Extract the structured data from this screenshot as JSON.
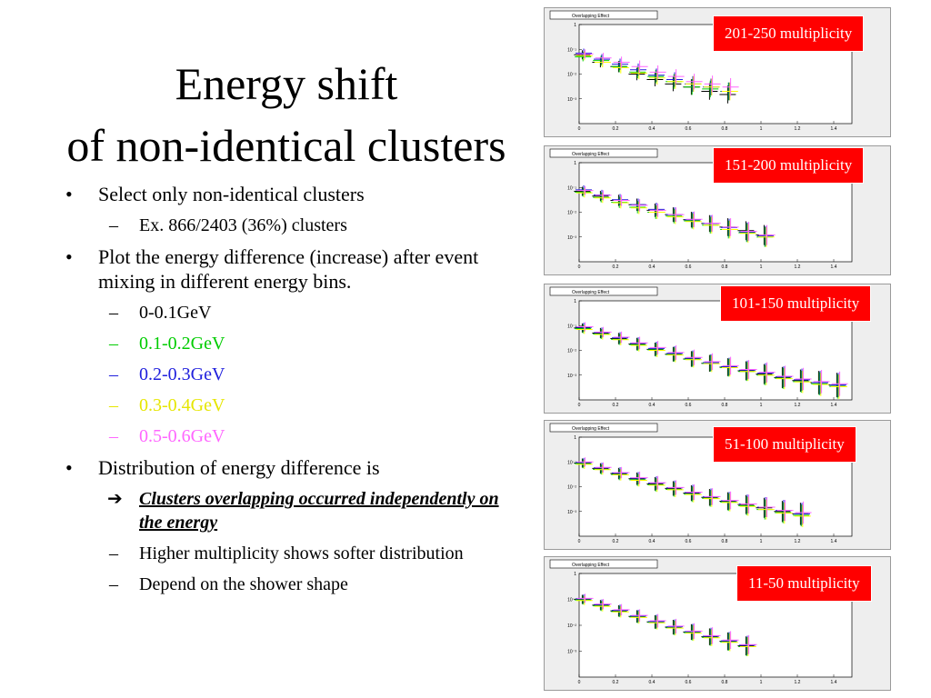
{
  "title": {
    "line1": "Energy shift",
    "line2": "of non-identical clusters"
  },
  "bullets": {
    "b1": "Select only non-identical clusters",
    "b1_sub": "Ex. 866/2403 (36%) clusters",
    "b2": "Plot the energy difference (increase) after event mixing in different energy bins.",
    "b2_sub": [
      {
        "text": "0-0.1GeV",
        "color": "#000000"
      },
      {
        "text": "0.1-0.2GeV",
        "color": "#00cc00"
      },
      {
        "text": "0.2-0.3GeV",
        "color": "#2020dd"
      },
      {
        "text": "0.3-0.4GeV",
        "color": "#ffff00"
      },
      {
        "text": "0.5-0.6GeV",
        "color": "#ff66ff"
      }
    ],
    "b3": "Distribution of energy difference is",
    "b3_sub1": "Clusters overlapping occurred independently on the energy",
    "b3_sub2": "Higher multiplicity shows softer distribution",
    "b3_sub3": "Depend on the shower shape",
    "marker": "•",
    "dash": "–",
    "arrow": "➔"
  },
  "panels": [
    {
      "label": "201-250 multiplicity",
      "hist_title": "Overlapping Effect"
    },
    {
      "label": "151-200 multiplicity",
      "hist_title": "Overlapping Effect"
    },
    {
      "label": "101-150 multiplicity",
      "hist_title": "Overlapping Effect"
    },
    {
      "label": "51-100 multiplicity",
      "hist_title": "Overlapping Effect"
    },
    {
      "label": "11-50 multiplicity",
      "hist_title": "Overlapping Effect"
    }
  ],
  "chart_data": [
    {
      "type": "scatter",
      "title": "Overlapping Effect",
      "xlim": [
        0,
        1.5
      ],
      "log_y": true,
      "ylim": [
        0.0001,
        1
      ],
      "xticks": [
        "0",
        "0.2",
        "0.4",
        "0.6",
        "0.8",
        "1",
        "1.2",
        "1.4"
      ],
      "yticks": [
        "1",
        "10⁻¹",
        "10⁻²",
        "10⁻³"
      ],
      "series": [
        {
          "name": "0-0.1GeV",
          "color": "#000000",
          "x": [
            0.025,
            0.125,
            0.225,
            0.325,
            0.425,
            0.525,
            0.625,
            0.725,
            0.825
          ],
          "y": [
            0.06,
            0.03,
            0.02,
            0.01,
            0.006,
            0.004,
            0.003,
            0.002,
            0.0015
          ]
        },
        {
          "name": "0.1-0.2GeV",
          "color": "#00cc00",
          "x": [
            0.025,
            0.125,
            0.225,
            0.325,
            0.425,
            0.525,
            0.625,
            0.725,
            0.825
          ],
          "y": [
            0.05,
            0.035,
            0.02,
            0.012,
            0.008,
            0.005,
            0.003,
            0.0025,
            0.002
          ]
        },
        {
          "name": "0.2-0.3GeV",
          "color": "#2020dd",
          "x": [
            0.025,
            0.125,
            0.225,
            0.325,
            0.425,
            0.525,
            0.625,
            0.725,
            0.825
          ],
          "y": [
            0.07,
            0.04,
            0.025,
            0.015,
            0.009,
            0.006,
            0.004,
            0.003,
            0.002
          ]
        },
        {
          "name": "0.3-0.4GeV",
          "color": "#ffff00",
          "x": [
            0.025,
            0.125,
            0.225,
            0.325,
            0.425,
            0.525,
            0.625,
            0.725,
            0.825
          ],
          "y": [
            0.055,
            0.03,
            0.018,
            0.011,
            0.007,
            0.005,
            0.004,
            0.003,
            0.002
          ]
        },
        {
          "name": "0.5-0.6GeV",
          "color": "#ff66ff",
          "x": [
            0.025,
            0.125,
            0.225,
            0.325,
            0.425,
            0.525,
            0.625,
            0.725,
            0.825
          ],
          "y": [
            0.065,
            0.045,
            0.03,
            0.02,
            0.012,
            0.008,
            0.005,
            0.004,
            0.003
          ]
        }
      ]
    },
    {
      "type": "scatter",
      "title": "Overlapping Effect",
      "xlim": [
        0,
        1.5
      ],
      "log_y": true,
      "ylim": [
        0.0001,
        1
      ],
      "xticks": [
        "0",
        "0.2",
        "0.4",
        "0.6",
        "0.8",
        "1",
        "1.2",
        "1.4"
      ],
      "yticks": [
        "1",
        "10⁻¹",
        "10⁻²",
        "10⁻³"
      ],
      "series": [
        {
          "name": "0-0.1GeV",
          "color": "#000000",
          "x": [
            0.025,
            0.125,
            0.225,
            0.325,
            0.425,
            0.525,
            0.625,
            0.725,
            0.825,
            0.925,
            1.025
          ],
          "y": [
            0.07,
            0.045,
            0.03,
            0.02,
            0.012,
            0.008,
            0.005,
            0.0035,
            0.0025,
            0.0018,
            0.0012
          ]
        },
        {
          "name": "0.1-0.2GeV",
          "color": "#00cc00",
          "x": [
            0.025,
            0.125,
            0.225,
            0.325,
            0.425,
            0.525,
            0.625,
            0.725,
            0.825,
            0.925,
            1.025
          ],
          "y": [
            0.065,
            0.04,
            0.025,
            0.016,
            0.01,
            0.007,
            0.0045,
            0.003,
            0.002,
            0.0015,
            0.001
          ]
        },
        {
          "name": "0.2-0.3GeV",
          "color": "#2020dd",
          "x": [
            0.025,
            0.125,
            0.225,
            0.325,
            0.425,
            0.525,
            0.625,
            0.725,
            0.825,
            0.925,
            1.025
          ],
          "y": [
            0.08,
            0.05,
            0.032,
            0.02,
            0.013,
            0.008,
            0.005,
            0.0035,
            0.0024,
            0.0016,
            0.0011
          ]
        },
        {
          "name": "0.3-0.4GeV",
          "color": "#ffff00",
          "x": [
            0.025,
            0.125,
            0.225,
            0.325,
            0.425,
            0.525,
            0.625,
            0.725,
            0.825,
            0.925,
            1.025
          ],
          "y": [
            0.06,
            0.038,
            0.024,
            0.015,
            0.01,
            0.0065,
            0.0042,
            0.003,
            0.002,
            0.0014,
            0.001
          ]
        },
        {
          "name": "0.5-0.6GeV",
          "color": "#ff66ff",
          "x": [
            0.025,
            0.125,
            0.225,
            0.325,
            0.425,
            0.525,
            0.625,
            0.725,
            0.825,
            0.925,
            1.025
          ],
          "y": [
            0.075,
            0.048,
            0.03,
            0.019,
            0.012,
            0.008,
            0.0052,
            0.0036,
            0.0025,
            0.0017,
            0.0012
          ]
        }
      ]
    },
    {
      "type": "scatter",
      "title": "Overlapping Effect",
      "xlim": [
        0,
        1.5
      ],
      "log_y": true,
      "ylim": [
        0.0001,
        1
      ],
      "xticks": [
        "0",
        "0.2",
        "0.4",
        "0.6",
        "0.8",
        "1",
        "1.2",
        "1.4"
      ],
      "yticks": [
        "1",
        "10⁻¹",
        "10⁻²",
        "10⁻³"
      ],
      "series": [
        {
          "name": "0-0.1GeV",
          "color": "#000000",
          "x": [
            0.025,
            0.125,
            0.225,
            0.325,
            0.425,
            0.525,
            0.625,
            0.725,
            0.825,
            0.925,
            1.025,
            1.125,
            1.225,
            1.325,
            1.425
          ],
          "y": [
            0.08,
            0.05,
            0.03,
            0.018,
            0.011,
            0.007,
            0.0045,
            0.003,
            0.0021,
            0.0015,
            0.0011,
            0.0008,
            0.0006,
            0.0005,
            0.0004
          ]
        },
        {
          "name": "0.1-0.2GeV",
          "color": "#00cc00",
          "x": [
            0.025,
            0.125,
            0.225,
            0.325,
            0.425,
            0.525,
            0.625,
            0.725,
            0.825,
            0.925,
            1.025,
            1.125,
            1.225,
            1.325,
            1.425
          ],
          "y": [
            0.075,
            0.046,
            0.028,
            0.017,
            0.0105,
            0.0068,
            0.0044,
            0.003,
            0.002,
            0.0014,
            0.001,
            0.00075,
            0.00055,
            0.00045,
            0.00035
          ]
        },
        {
          "name": "0.2-0.3GeV",
          "color": "#2020dd",
          "x": [
            0.025,
            0.125,
            0.225,
            0.325,
            0.425,
            0.525,
            0.625,
            0.725,
            0.825,
            0.925,
            1.025,
            1.125,
            1.225,
            1.325,
            1.425
          ],
          "y": [
            0.085,
            0.052,
            0.032,
            0.019,
            0.012,
            0.0075,
            0.0048,
            0.0032,
            0.0022,
            0.0016,
            0.0012,
            0.00085,
            0.00065,
            0.0005,
            0.0004
          ]
        },
        {
          "name": "0.3-0.4GeV",
          "color": "#ffff00",
          "x": [
            0.025,
            0.125,
            0.225,
            0.325,
            0.425,
            0.525,
            0.625,
            0.725,
            0.825,
            0.925,
            1.025,
            1.125,
            1.225,
            1.325,
            1.425
          ],
          "y": [
            0.07,
            0.044,
            0.027,
            0.016,
            0.01,
            0.0065,
            0.0042,
            0.0029,
            0.002,
            0.0014,
            0.001,
            0.00072,
            0.00053,
            0.00042,
            0.00034
          ]
        },
        {
          "name": "0.5-0.6GeV",
          "color": "#ff66ff",
          "x": [
            0.025,
            0.125,
            0.225,
            0.325,
            0.425,
            0.525,
            0.625,
            0.725,
            0.825,
            0.925,
            1.025,
            1.125,
            1.225,
            1.325,
            1.425
          ],
          "y": [
            0.09,
            0.055,
            0.034,
            0.02,
            0.013,
            0.0082,
            0.0052,
            0.0035,
            0.0024,
            0.0017,
            0.0013,
            0.0009,
            0.0007,
            0.00055,
            0.00045
          ]
        }
      ]
    },
    {
      "type": "scatter",
      "title": "Overlapping Effect",
      "xlim": [
        0,
        1.5
      ],
      "log_y": true,
      "ylim": [
        0.0001,
        1
      ],
      "xticks": [
        "0",
        "0.2",
        "0.4",
        "0.6",
        "0.8",
        "1",
        "1.2",
        "1.4"
      ],
      "yticks": [
        "1",
        "10⁻¹",
        "10⁻²",
        "10⁻³"
      ],
      "series": [
        {
          "name": "0-0.1GeV",
          "color": "#000000",
          "x": [
            0.025,
            0.125,
            0.225,
            0.325,
            0.425,
            0.525,
            0.625,
            0.725,
            0.825,
            0.925,
            1.025,
            1.125,
            1.225
          ],
          "y": [
            0.09,
            0.055,
            0.034,
            0.021,
            0.013,
            0.0085,
            0.0055,
            0.0037,
            0.0026,
            0.0019,
            0.0014,
            0.001,
            0.0008
          ]
        },
        {
          "name": "0.1-0.2GeV",
          "color": "#00cc00",
          "x": [
            0.025,
            0.125,
            0.225,
            0.325,
            0.425,
            0.525,
            0.625,
            0.725,
            0.825,
            0.925,
            1.025,
            1.125,
            1.225
          ],
          "y": [
            0.085,
            0.05,
            0.031,
            0.019,
            0.012,
            0.0078,
            0.005,
            0.0034,
            0.0024,
            0.0017,
            0.0012,
            0.0009,
            0.0007
          ]
        },
        {
          "name": "0.2-0.3GeV",
          "color": "#2020dd",
          "x": [
            0.025,
            0.125,
            0.225,
            0.325,
            0.425,
            0.525,
            0.625,
            0.725,
            0.825,
            0.925,
            1.025,
            1.125,
            1.225
          ],
          "y": [
            0.095,
            0.058,
            0.036,
            0.022,
            0.014,
            0.009,
            0.0058,
            0.0039,
            0.0027,
            0.002,
            0.0015,
            0.0011,
            0.0008
          ]
        },
        {
          "name": "0.3-0.4GeV",
          "color": "#ffff00",
          "x": [
            0.025,
            0.125,
            0.225,
            0.325,
            0.425,
            0.525,
            0.625,
            0.725,
            0.825,
            0.925,
            1.025,
            1.125,
            1.225
          ],
          "y": [
            0.08,
            0.049,
            0.03,
            0.018,
            0.0115,
            0.0075,
            0.0048,
            0.0033,
            0.0023,
            0.0016,
            0.0012,
            0.00085,
            0.00065
          ]
        },
        {
          "name": "0.5-0.6GeV",
          "color": "#ff66ff",
          "x": [
            0.025,
            0.125,
            0.225,
            0.325,
            0.425,
            0.525,
            0.625,
            0.725,
            0.825,
            0.925,
            1.025,
            1.125,
            1.225
          ],
          "y": [
            0.1,
            0.06,
            0.037,
            0.023,
            0.0145,
            0.0093,
            0.006,
            0.004,
            0.0028,
            0.002,
            0.0015,
            0.0011,
            0.0009
          ]
        }
      ]
    },
    {
      "type": "scatter",
      "title": "Overlapping Effect",
      "xlim": [
        0,
        1.5
      ],
      "log_y": true,
      "ylim": [
        0.0001,
        1
      ],
      "xticks": [
        "0",
        "0.2",
        "0.4",
        "0.6",
        "0.8",
        "1",
        "1.2",
        "1.4"
      ],
      "yticks": [
        "1",
        "10⁻¹",
        "10⁻²",
        "10⁻³"
      ],
      "series": [
        {
          "name": "0-0.1GeV",
          "color": "#000000",
          "x": [
            0.025,
            0.125,
            0.225,
            0.325,
            0.425,
            0.525,
            0.625,
            0.725,
            0.825,
            0.925
          ],
          "y": [
            0.1,
            0.06,
            0.036,
            0.022,
            0.0135,
            0.0085,
            0.0055,
            0.0036,
            0.0024,
            0.0016
          ]
        },
        {
          "name": "0.1-0.2GeV",
          "color": "#00cc00",
          "x": [
            0.025,
            0.125,
            0.225,
            0.325,
            0.425,
            0.525,
            0.625,
            0.725,
            0.825,
            0.925
          ],
          "y": [
            0.095,
            0.056,
            0.034,
            0.021,
            0.013,
            0.008,
            0.0052,
            0.0034,
            0.0023,
            0.0015
          ]
        },
        {
          "name": "0.2-0.3GeV",
          "color": "#2020dd",
          "x": [
            0.025,
            0.125,
            0.225,
            0.325,
            0.425,
            0.525,
            0.625,
            0.725,
            0.825,
            0.925
          ],
          "y": [
            0.105,
            0.063,
            0.038,
            0.023,
            0.014,
            0.0088,
            0.0057,
            0.0038,
            0.0025,
            0.0017
          ]
        },
        {
          "name": "0.3-0.4GeV",
          "color": "#ffff00",
          "x": [
            0.025,
            0.125,
            0.225,
            0.325,
            0.425,
            0.525,
            0.625,
            0.725,
            0.825,
            0.925
          ],
          "y": [
            0.09,
            0.054,
            0.033,
            0.02,
            0.0125,
            0.0078,
            0.005,
            0.0033,
            0.0022,
            0.0015
          ]
        },
        {
          "name": "0.5-0.6GeV",
          "color": "#ff66ff",
          "x": [
            0.025,
            0.125,
            0.225,
            0.325,
            0.425,
            0.525,
            0.625,
            0.725,
            0.825,
            0.925
          ],
          "y": [
            0.11,
            0.066,
            0.04,
            0.024,
            0.015,
            0.0093,
            0.006,
            0.004,
            0.0027,
            0.0018
          ]
        }
      ]
    }
  ]
}
